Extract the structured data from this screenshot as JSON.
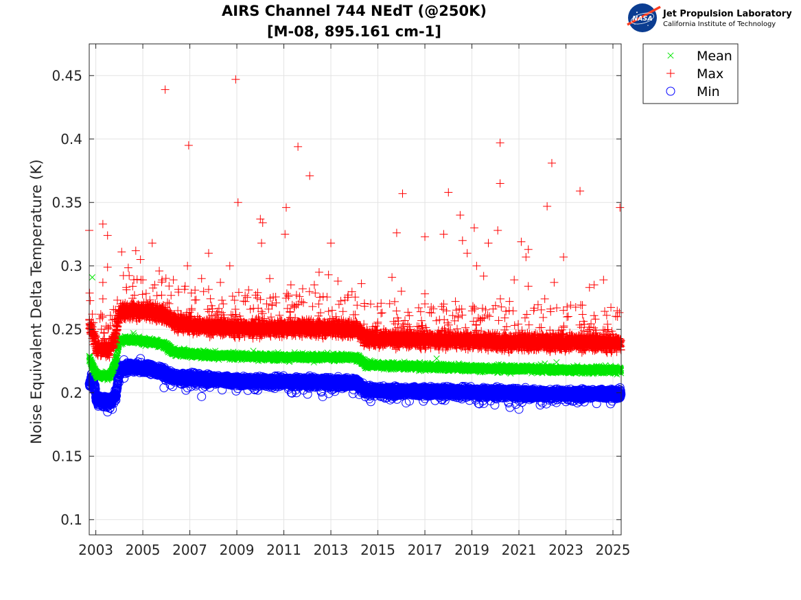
{
  "logo": {
    "org_name": "Jet Propulsion Laboratory",
    "org_sub": "California Institute of Technology",
    "badge_text": "NASA"
  },
  "chart_data": {
    "type": "scatter",
    "title": [
      "AIRS Channel 744 NEdT (@250K)",
      "[M-08, 895.161 cm-1]"
    ],
    "xlabel": "",
    "ylabel": "Noise Equivalent Delta Temperature (K)",
    "xlim": [
      2002.72,
      2025.35
    ],
    "ylim": [
      0.088,
      0.475
    ],
    "xticks": [
      2003,
      2005,
      2007,
      2009,
      2011,
      2013,
      2015,
      2017,
      2019,
      2021,
      2023,
      2025
    ],
    "xtick_labels": [
      "2003",
      "2005",
      "2007",
      "2009",
      "2011",
      "2013",
      "2015",
      "2017",
      "2019",
      "2021",
      "2023",
      "2025"
    ],
    "yticks": [
      0.1,
      0.15,
      0.2,
      0.25,
      0.3,
      0.35,
      0.4,
      0.45
    ],
    "ytick_labels": [
      "0.1",
      "0.15",
      "0.2",
      "0.25",
      "0.3",
      "0.35",
      "0.4",
      "0.45"
    ],
    "grid": true,
    "legend_position": "outside-top-right",
    "series": [
      {
        "name": "Mean",
        "marker": "x",
        "color": "#00e600",
        "trend": [
          [
            2002.72,
            0.228
          ],
          [
            2002.85,
            0.221
          ],
          [
            2003.05,
            0.214
          ],
          [
            2003.6,
            0.213
          ],
          [
            2003.85,
            0.225
          ],
          [
            2004.0,
            0.241
          ],
          [
            2004.5,
            0.242
          ],
          [
            2005.3,
            0.24
          ],
          [
            2005.9,
            0.238
          ],
          [
            2006.3,
            0.232
          ],
          [
            2007.5,
            0.23
          ],
          [
            2009.0,
            0.229
          ],
          [
            2011.0,
            0.228
          ],
          [
            2013.0,
            0.228
          ],
          [
            2014.1,
            0.228
          ],
          [
            2014.5,
            0.222
          ],
          [
            2016.0,
            0.221
          ],
          [
            2018.0,
            0.22
          ],
          [
            2019.5,
            0.219
          ],
          [
            2021.0,
            0.219
          ],
          [
            2023.0,
            0.218
          ],
          [
            2025.35,
            0.218
          ]
        ],
        "spread": 0.0025,
        "outliers": [
          [
            2002.85,
            0.291
          ],
          [
            2002.75,
            0.228
          ],
          [
            2003.5,
            0.21
          ],
          [
            2004.6,
            0.247
          ],
          [
            2009.7,
            0.233
          ],
          [
            2017.5,
            0.227
          ],
          [
            2022.1,
            0.223
          ],
          [
            2022.6,
            0.224
          ],
          [
            2024.4,
            0.221
          ]
        ]
      },
      {
        "name": "Max",
        "marker": "+",
        "color": "#ff0000",
        "trend": [
          [
            2002.72,
            0.255
          ],
          [
            2002.9,
            0.245
          ],
          [
            2003.05,
            0.235
          ],
          [
            2003.6,
            0.234
          ],
          [
            2003.85,
            0.245
          ],
          [
            2004.0,
            0.263
          ],
          [
            2004.5,
            0.265
          ],
          [
            2005.3,
            0.264
          ],
          [
            2005.9,
            0.262
          ],
          [
            2006.3,
            0.256
          ],
          [
            2007.5,
            0.252
          ],
          [
            2009.0,
            0.251
          ],
          [
            2011.0,
            0.251
          ],
          [
            2013.0,
            0.251
          ],
          [
            2014.1,
            0.25
          ],
          [
            2014.5,
            0.243
          ],
          [
            2016.0,
            0.242
          ],
          [
            2018.0,
            0.242
          ],
          [
            2020.0,
            0.24
          ],
          [
            2022.0,
            0.24
          ],
          [
            2025.35,
            0.239
          ]
        ],
        "spread": 0.006,
        "outliers": [
          [
            2002.72,
            0.328
          ],
          [
            2002.85,
            0.262
          ],
          [
            2003.3,
            0.333
          ],
          [
            2003.3,
            0.287
          ],
          [
            2003.3,
            0.274
          ],
          [
            2003.5,
            0.324
          ],
          [
            2003.5,
            0.299
          ],
          [
            2003.8,
            0.258
          ],
          [
            2004.1,
            0.311
          ],
          [
            2004.3,
            0.283
          ],
          [
            2004.7,
            0.312
          ],
          [
            2004.9,
            0.305
          ],
          [
            2005.0,
            0.289
          ],
          [
            2005.4,
            0.318
          ],
          [
            2005.7,
            0.296
          ],
          [
            2005.8,
            0.277
          ],
          [
            2005.95,
            0.439
          ],
          [
            2006.3,
            0.289
          ],
          [
            2006.8,
            0.284
          ],
          [
            2006.9,
            0.3
          ],
          [
            2006.95,
            0.395
          ],
          [
            2007.5,
            0.29
          ],
          [
            2007.8,
            0.31
          ],
          [
            2008.3,
            0.287
          ],
          [
            2008.7,
            0.3
          ],
          [
            2008.95,
            0.447
          ],
          [
            2009.05,
            0.35
          ],
          [
            2009.5,
            0.281
          ],
          [
            2010.0,
            0.337
          ],
          [
            2010.05,
            0.318
          ],
          [
            2010.1,
            0.334
          ],
          [
            2010.4,
            0.29
          ],
          [
            2011.05,
            0.325
          ],
          [
            2011.1,
            0.346
          ],
          [
            2011.3,
            0.285
          ],
          [
            2011.6,
            0.394
          ],
          [
            2011.8,
            0.282
          ],
          [
            2012.1,
            0.371
          ],
          [
            2012.5,
            0.295
          ],
          [
            2012.9,
            0.293
          ],
          [
            2013.0,
            0.318
          ],
          [
            2013.3,
            0.288
          ],
          [
            2013.6,
            0.273
          ],
          [
            2014.3,
            0.286
          ],
          [
            2015.6,
            0.291
          ],
          [
            2015.8,
            0.326
          ],
          [
            2016.05,
            0.357
          ],
          [
            2016.0,
            0.28
          ],
          [
            2016.9,
            0.253
          ],
          [
            2017.0,
            0.323
          ],
          [
            2017.0,
            0.278
          ],
          [
            2017.8,
            0.325
          ],
          [
            2018.0,
            0.358
          ],
          [
            2018.3,
            0.272
          ],
          [
            2018.5,
            0.34
          ],
          [
            2018.6,
            0.32
          ],
          [
            2018.8,
            0.31
          ],
          [
            2019.1,
            0.33
          ],
          [
            2019.2,
            0.3
          ],
          [
            2019.5,
            0.292
          ],
          [
            2019.7,
            0.318
          ],
          [
            2019.9,
            0.266
          ],
          [
            2020.2,
            0.397
          ],
          [
            2020.2,
            0.365
          ],
          [
            2020.1,
            0.328
          ],
          [
            2020.6,
            0.272
          ],
          [
            2020.8,
            0.289
          ],
          [
            2021.1,
            0.319
          ],
          [
            2021.3,
            0.307
          ],
          [
            2021.4,
            0.313
          ],
          [
            2021.4,
            0.284
          ],
          [
            2022.1,
            0.274
          ],
          [
            2022.2,
            0.347
          ],
          [
            2022.4,
            0.381
          ],
          [
            2022.5,
            0.287
          ],
          [
            2022.9,
            0.307
          ],
          [
            2023.2,
            0.269
          ],
          [
            2023.6,
            0.359
          ],
          [
            2023.7,
            0.269
          ],
          [
            2024.2,
            0.285
          ],
          [
            2024.0,
            0.283
          ],
          [
            2024.6,
            0.289
          ],
          [
            2025.3,
            0.346
          ]
        ]
      },
      {
        "name": "Min",
        "marker": "o",
        "color": "#0000ff",
        "trend": [
          [
            2002.72,
            0.205
          ],
          [
            2002.85,
            0.213
          ],
          [
            2003.05,
            0.194
          ],
          [
            2003.6,
            0.193
          ],
          [
            2003.85,
            0.198
          ],
          [
            2004.0,
            0.218
          ],
          [
            2004.5,
            0.22
          ],
          [
            2005.3,
            0.219
          ],
          [
            2005.9,
            0.216
          ],
          [
            2006.3,
            0.212
          ],
          [
            2007.5,
            0.211
          ],
          [
            2009.0,
            0.209
          ],
          [
            2011.0,
            0.209
          ],
          [
            2013.0,
            0.208
          ],
          [
            2014.1,
            0.208
          ],
          [
            2014.5,
            0.202
          ],
          [
            2016.0,
            0.201
          ],
          [
            2018.0,
            0.201
          ],
          [
            2020.0,
            0.2
          ],
          [
            2022.0,
            0.199
          ],
          [
            2025.35,
            0.199
          ]
        ],
        "spread": 0.0035,
        "outliers": [
          [
            2003.3,
            0.189
          ],
          [
            2003.7,
            0.187
          ],
          [
            2004.2,
            0.226
          ],
          [
            2004.9,
            0.227
          ],
          [
            2005.9,
            0.204
          ],
          [
            2007.5,
            0.197
          ],
          [
            2014.7,
            0.193
          ],
          [
            2016.2,
            0.192
          ],
          [
            2018.9,
            0.194
          ],
          [
            2021.0,
            0.187
          ],
          [
            2022.0,
            0.192
          ],
          [
            2023.0,
            0.193
          ],
          [
            2025.3,
            0.204
          ]
        ]
      }
    ]
  }
}
